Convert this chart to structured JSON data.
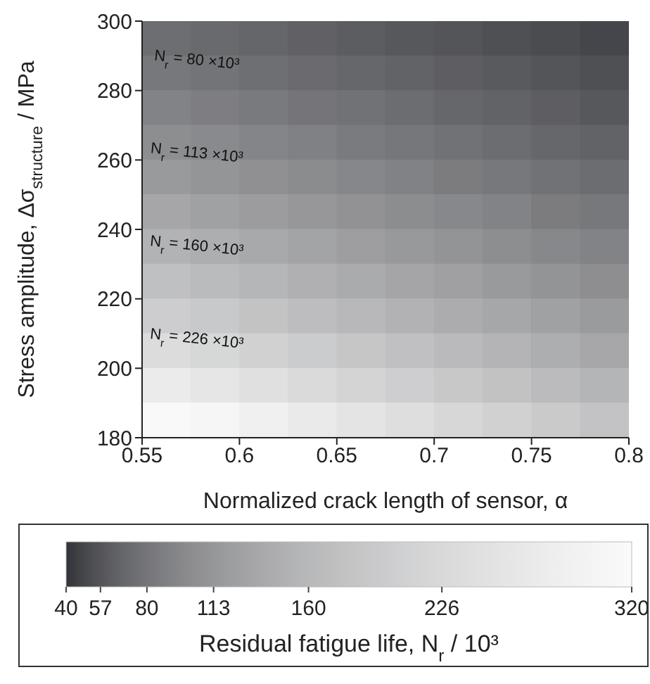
{
  "chart_data": {
    "type": "heatmap",
    "xlabel": "Normalized crack length of sensor, α",
    "ylabel": "Stress amplitude, Δσ$_{structure}$ / MPa",
    "clabel": "Residual fatigue life, N$_{r}$ / 10³",
    "xlim": [
      0.55,
      0.8
    ],
    "ylim": [
      180,
      300
    ],
    "xticks": [
      0.55,
      0.6,
      0.65,
      0.7,
      0.75,
      0.8
    ],
    "yticks": [
      180,
      200,
      220,
      240,
      260,
      280,
      300
    ],
    "clim": [
      40,
      320
    ],
    "cticks": [
      40,
      57,
      80,
      113,
      160,
      226,
      320
    ],
    "cells": [
      [
        74,
        71,
        68,
        65,
        62,
        59,
        57,
        54,
        52,
        49
      ],
      [
        82,
        79,
        75,
        72,
        69,
        66,
        63,
        60,
        57,
        54
      ],
      [
        92,
        88,
        84,
        80,
        77,
        73,
        69,
        66,
        63,
        59
      ],
      [
        103,
        99,
        94,
        90,
        85,
        81,
        77,
        73,
        69,
        66
      ],
      [
        117,
        111,
        106,
        101,
        96,
        91,
        86,
        82,
        77,
        73
      ],
      [
        133,
        126,
        120,
        114,
        108,
        102,
        97,
        92,
        86,
        82
      ],
      [
        152,
        144,
        137,
        130,
        123,
        116,
        110,
        103,
        97,
        92
      ],
      [
        174,
        165,
        157,
        148,
        140,
        132,
        125,
        117,
        110,
        104
      ],
      [
        201,
        191,
        180,
        170,
        161,
        151,
        142,
        134,
        126,
        118
      ],
      [
        234,
        221,
        209,
        197,
        186,
        175,
        164,
        154,
        144,
        135
      ],
      [
        274,
        259,
        244,
        230,
        216,
        203,
        190,
        178,
        166,
        155
      ],
      [
        318,
        306,
        288,
        271,
        254,
        238,
        223,
        208,
        194,
        181
      ]
    ],
    "annotations": [
      "N$_{r}$ = 80 ×10³",
      "N$_{r}$ = 113 ×10³",
      "N$_{r}$ = 160 ×10³",
      "N$_{r}$ = 226 ×10³"
    ]
  }
}
